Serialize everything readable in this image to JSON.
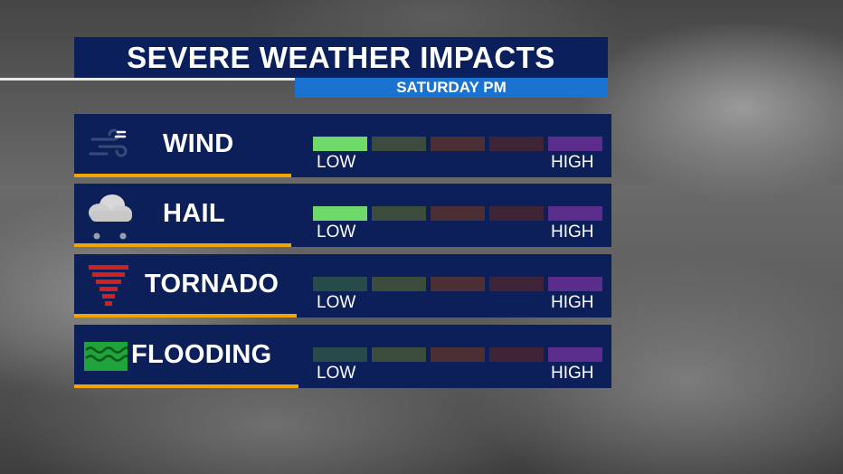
{
  "header": {
    "title": "SEVERE WEATHER IMPACTS",
    "subtitle": "SATURDAY PM"
  },
  "scale_levels": 5,
  "scale_colors": {
    "active_low": "#6fd96a",
    "dim": [
      "#274b4b",
      "#3c4c3c",
      "#4b2f34",
      "#3e2436",
      "#5a2d8c"
    ]
  },
  "rows": [
    {
      "hazard": "WIND",
      "icon": "wind-icon",
      "level": 1,
      "low_label": "LOW",
      "high_label": "HIGH"
    },
    {
      "hazard": "HAIL",
      "icon": "hail-cloud-icon",
      "level": 1,
      "low_label": "LOW",
      "high_label": "HIGH"
    },
    {
      "hazard": "TORNADO",
      "icon": "tornado-icon",
      "level": 0,
      "low_label": "LOW",
      "high_label": "HIGH"
    },
    {
      "hazard": "FLOODING",
      "icon": "flood-waves-icon",
      "level": 0,
      "low_label": "LOW",
      "high_label": "HIGH"
    }
  ]
}
